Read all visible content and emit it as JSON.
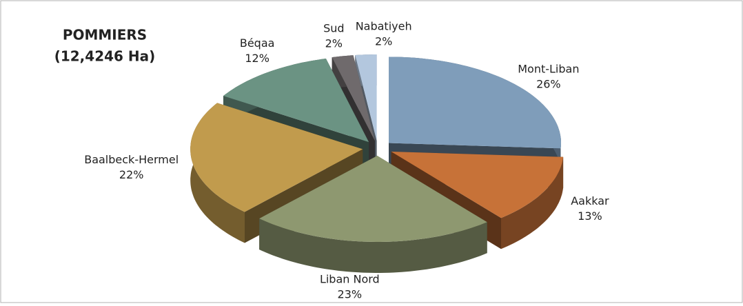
{
  "chart_data": {
    "type": "pie3d",
    "title": "POMMIERS",
    "subtitle": "(12,4246 Ha)",
    "categories": [
      "Mont-Liban",
      "Aakkar",
      "Liban Nord",
      "Baalbeck-Hermel",
      "Béqaa",
      "Sud",
      "Nabatiyeh"
    ],
    "values": [
      26,
      13,
      23,
      22,
      12,
      2,
      2
    ],
    "value_labels": [
      "26%",
      "13%",
      "23%",
      "22%",
      "12%",
      "2%",
      "2%"
    ],
    "colors": [
      "#7f9dba",
      "#c77238",
      "#8e9870",
      "#c19b4d",
      "#6b9383",
      "#6f6a6c",
      "#b3c7de"
    ]
  }
}
